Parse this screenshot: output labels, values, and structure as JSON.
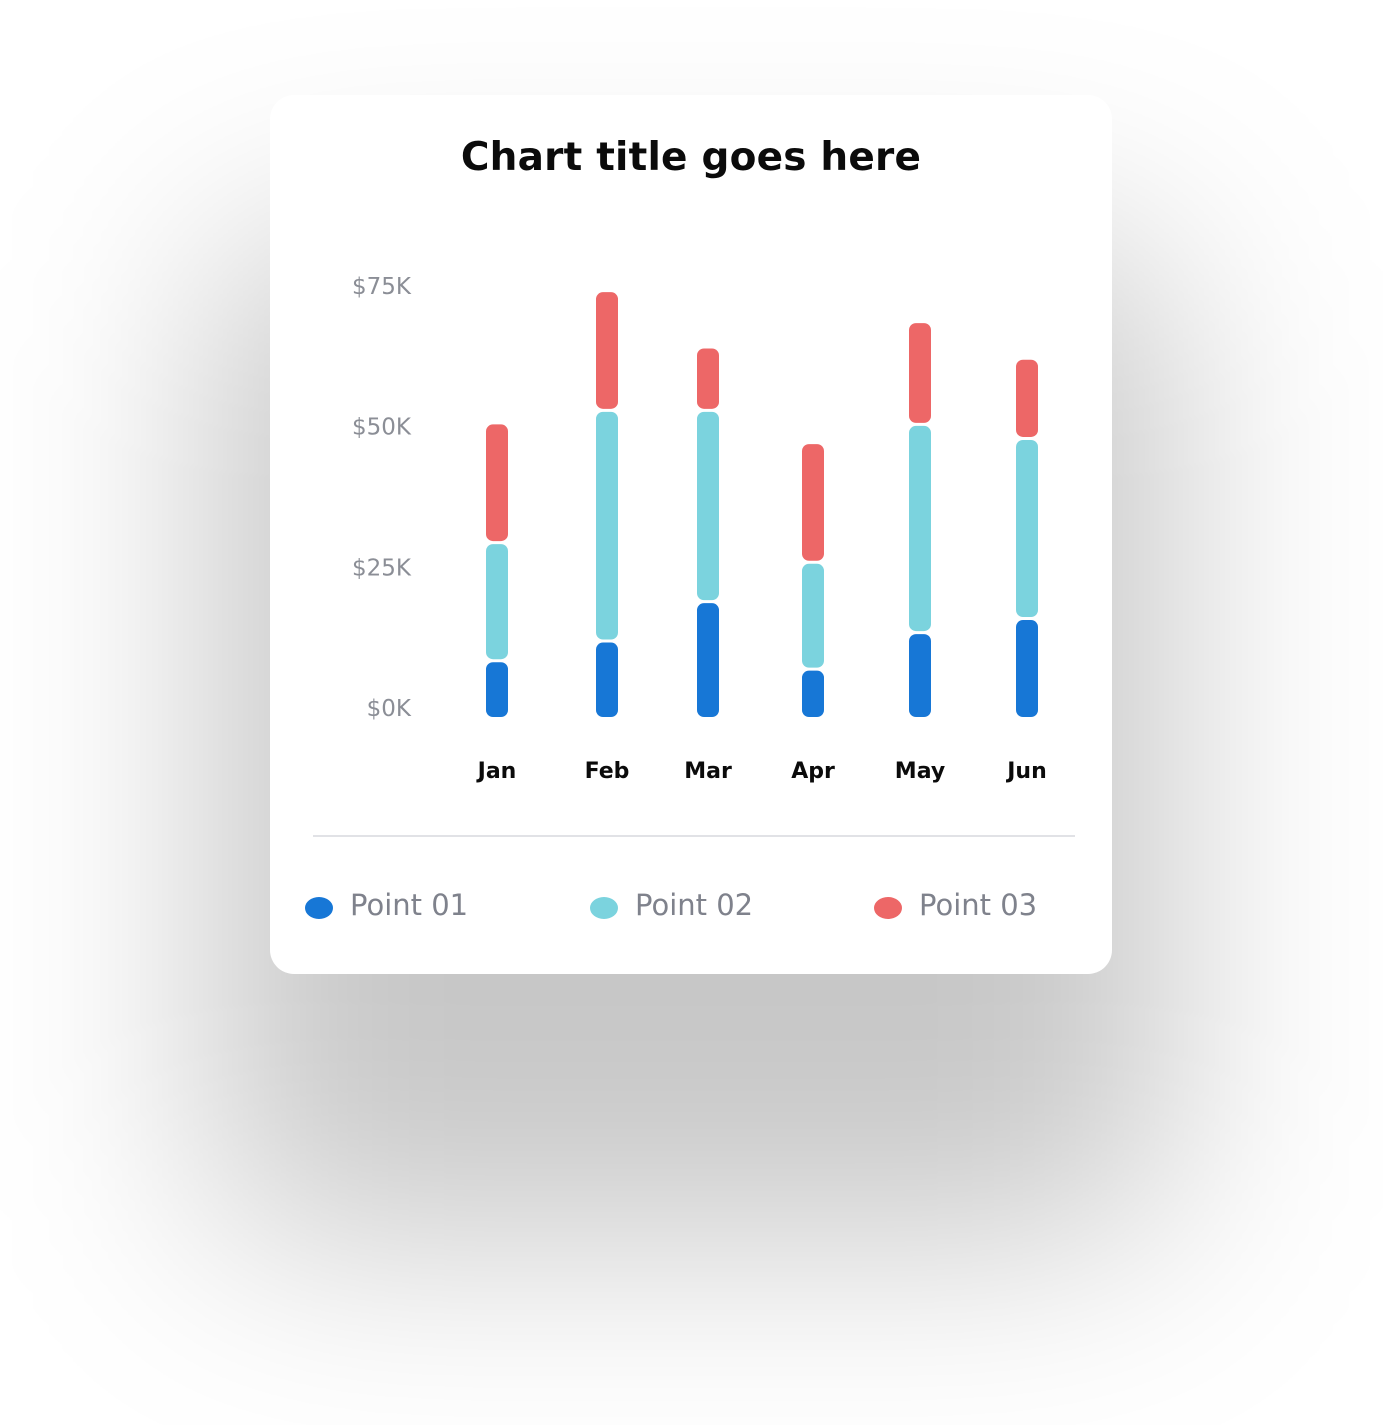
{
  "chart_data": {
    "type": "bar",
    "stacked": true,
    "title": "Chart title goes here",
    "categories": [
      "Jan",
      "Feb",
      "Mar",
      "Apr",
      "May",
      "Jun"
    ],
    "series": [
      {
        "name": "Point 01",
        "color": "#1777d6",
        "values": [
          10000,
          13500,
          20500,
          8500,
          15000,
          17500
        ]
      },
      {
        "name": "Point 02",
        "color": "#7bd3de",
        "values": [
          21000,
          41000,
          34000,
          19000,
          37000,
          32000
        ]
      },
      {
        "name": "Point 03",
        "color": "#ed6767",
        "values": [
          21000,
          21000,
          11000,
          21000,
          18000,
          14000
        ]
      }
    ],
    "yticks": [
      "$0K",
      "$25K",
      "$50K",
      "$75K"
    ],
    "ytick_values": [
      0,
      25000,
      50000,
      75000
    ],
    "ylim": [
      0,
      75000
    ],
    "grid": false,
    "legend_position": "bottom"
  }
}
